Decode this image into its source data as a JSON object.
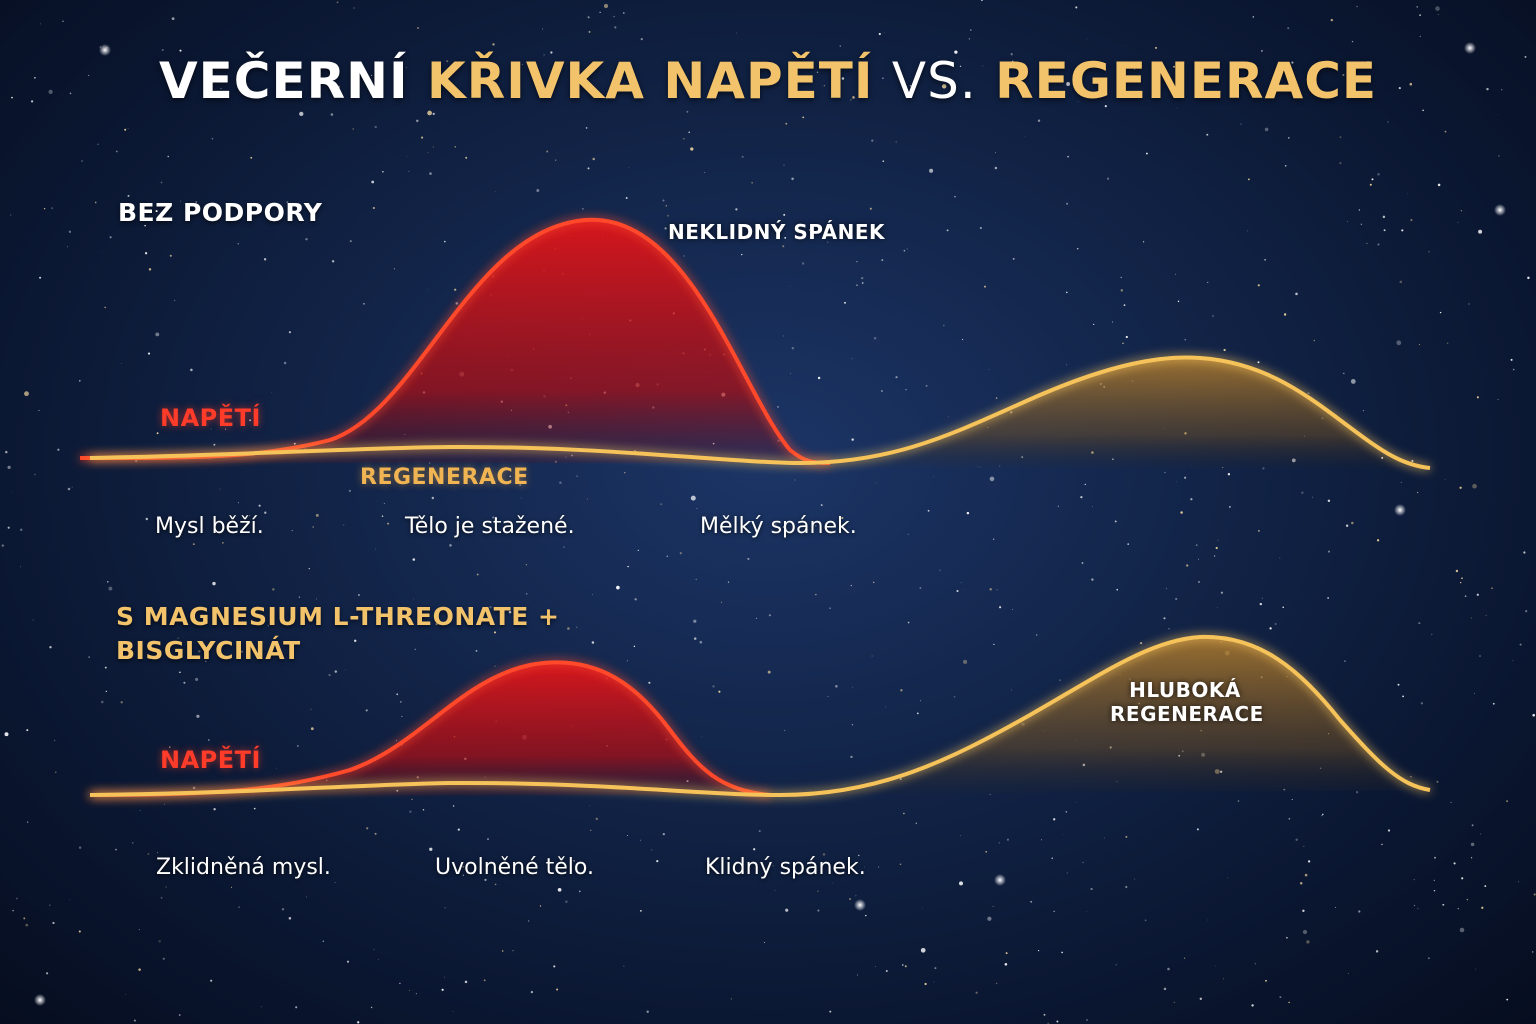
{
  "title": {
    "part1": "VEČERNÍ",
    "part2": "KŘIVKA NAPĚTÍ",
    "part3": "VS.",
    "part4": "REGENERACE"
  },
  "colors": {
    "tension": "#ff3b2a",
    "regeneration": "#f2c36b",
    "background": "#122448"
  },
  "panels": [
    {
      "heading_lines": [
        "BEZ PODPORY"
      ],
      "heading_color": "#ffffff",
      "tension_label": "NAPĚTÍ",
      "regeneration_label": "REGENERACE",
      "peak_label_lines": [
        "NEKLIDNÝ SPÁNEK"
      ],
      "captions": [
        "Mysl běží.",
        "Tělo je stažené.",
        "Mělký spánek."
      ]
    },
    {
      "heading_lines": [
        "S MAGNESIUM L-THREONATE +",
        "BISGLYCINÁT"
      ],
      "heading_color": "#f2c36b",
      "tension_label": "NAPĚTÍ",
      "regeneration_label": "",
      "peak_label_lines": [
        "HLUBOKÁ",
        "REGENERACE"
      ],
      "captions": [
        "Zklidněná mysl.",
        "Uvolněné tělo.",
        "Klidný spánek."
      ]
    }
  ]
}
